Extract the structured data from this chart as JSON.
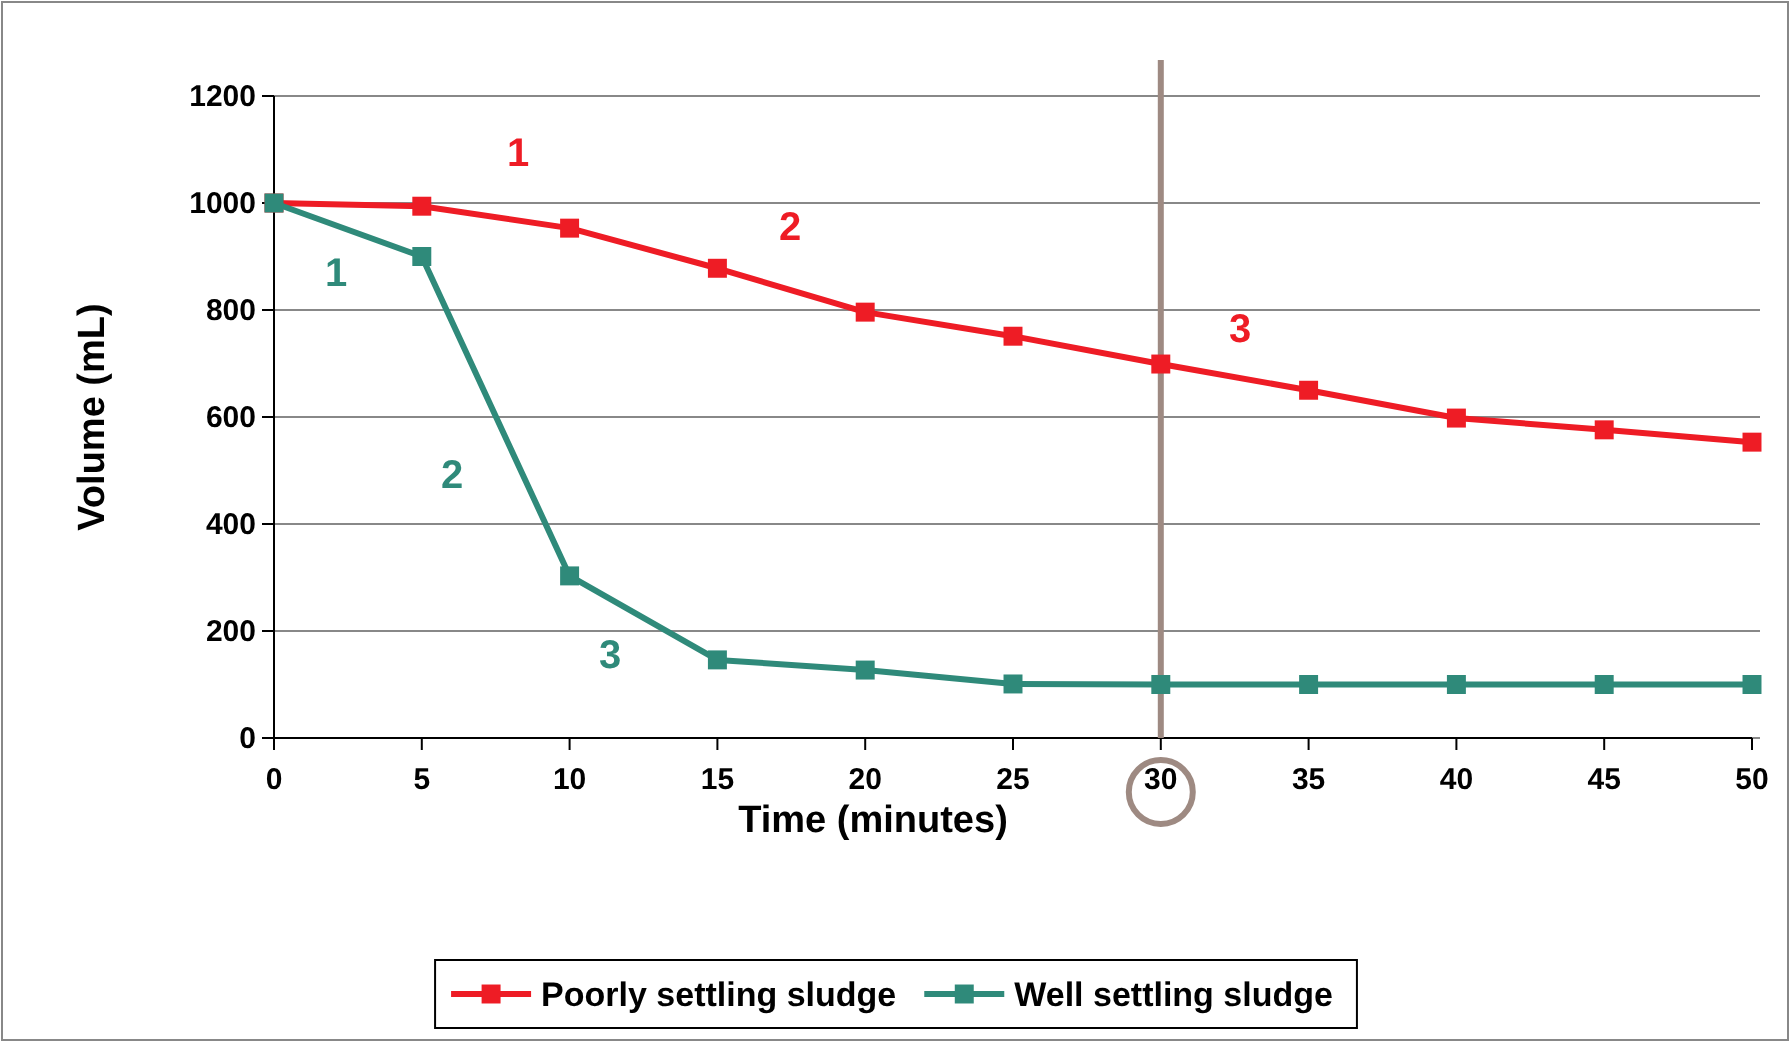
{
  "chart_data": {
    "type": "line",
    "xlabel": "Time (minutes)",
    "ylabel": "Volume (mL)",
    "x": [
      0,
      5,
      10,
      15,
      20,
      25,
      30,
      35,
      40,
      45,
      50
    ],
    "series": [
      {
        "name": "Poorly settling sludge",
        "color": "#ee1c25",
        "values": [
          1000,
          994,
          953,
          878,
          796,
          751,
          699,
          650,
          598,
          576,
          553
        ]
      },
      {
        "name": "Well settling sludge",
        "color": "#2f8a7a",
        "values": [
          1000,
          900,
          303,
          146,
          127,
          101,
          100,
          100,
          100,
          100,
          100
        ]
      }
    ],
    "xlim": [
      0,
      50
    ],
    "xticks": [
      0,
      5,
      10,
      15,
      20,
      25,
      30,
      35,
      40,
      45,
      50
    ],
    "ylim": [
      0,
      1200
    ],
    "yticks": [
      0,
      200,
      400,
      600,
      800,
      1000,
      1200
    ],
    "grid": "y",
    "legend": "bottom",
    "marker": "square",
    "line_style": "solid",
    "ref_lines": [
      {
        "axis": "x",
        "value": 30,
        "color": "#9e8a82"
      }
    ],
    "annotations": [
      "1",
      "2",
      "3",
      "1",
      "2",
      "3"
    ]
  }
}
